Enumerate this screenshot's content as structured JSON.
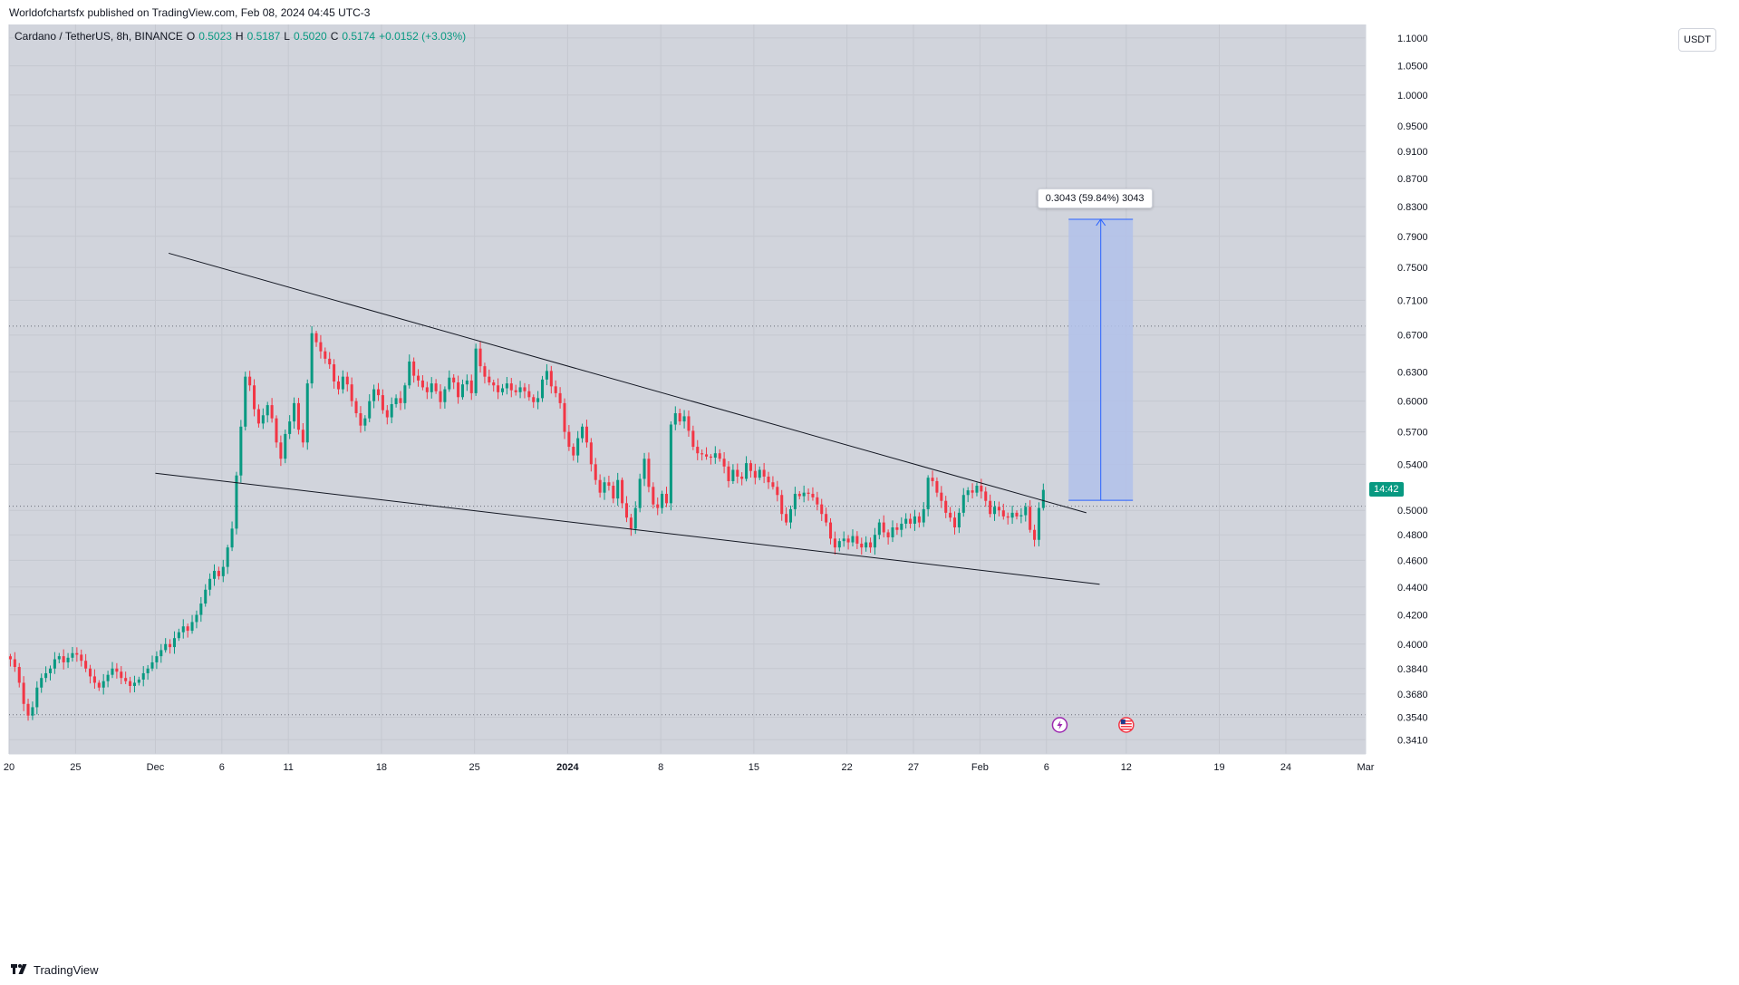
{
  "caption": "Worldofchartsfx published on TradingView.com, Feb 08, 2024 04:45 UTC-3",
  "brand": "TradingView",
  "legend": {
    "symbol": "Cardano / TetherUS, 8h, BINANCE",
    "o_label": "O",
    "o_value": "0.5023",
    "h_label": "H",
    "h_value": "0.5187",
    "l_label": "L",
    "l_value": "0.5020",
    "c_label": "C",
    "c_value": "0.5174",
    "change": "+0.0152 (+3.03%)"
  },
  "unit_button": "USDT",
  "last_price_tag": "14:42",
  "measure_label": "0.3043 (59.84%) 3043",
  "colors": {
    "background": "#d1d4dc",
    "up": "#089981",
    "down": "#f23645",
    "trendline": "#131722",
    "measure_fill": "#b2c1ea",
    "measure_line": "#2962ff"
  },
  "icons": [
    "lightning-event-icon",
    "us-flag-event-icon",
    "tradingview-logo-icon"
  ],
  "chart_data": {
    "type": "candlestick",
    "timeframe": "8h",
    "y_scale": "log",
    "ylim": [
      0.333,
      1.125
    ],
    "x_range": [
      "2023-11-20",
      "2024-03-01"
    ],
    "y_ticks": [
      "1.1000",
      "1.0500",
      "1.0000",
      "0.9500",
      "0.9100",
      "0.8700",
      "0.8300",
      "0.7900",
      "0.7500",
      "0.7100",
      "0.6700",
      "0.6300",
      "0.6000",
      "0.5700",
      "0.5400",
      "0.5000",
      "0.4800",
      "0.4600",
      "0.4400",
      "0.4200",
      "0.4000",
      "0.3840",
      "0.3680",
      "0.3540",
      "0.3410"
    ],
    "x_ticks": [
      {
        "date": "2023-11-20",
        "label": "20"
      },
      {
        "date": "2023-11-25",
        "label": "25"
      },
      {
        "date": "2023-12-01",
        "label": "Dec"
      },
      {
        "date": "2023-12-06",
        "label": "6"
      },
      {
        "date": "2023-12-11",
        "label": "11"
      },
      {
        "date": "2023-12-18",
        "label": "18"
      },
      {
        "date": "2023-12-25",
        "label": "25"
      },
      {
        "date": "2024-01-01",
        "label": "2024"
      },
      {
        "date": "2024-01-08",
        "label": "8"
      },
      {
        "date": "2024-01-15",
        "label": "15"
      },
      {
        "date": "2024-01-22",
        "label": "22"
      },
      {
        "date": "2024-01-27",
        "label": "27"
      },
      {
        "date": "2024-02-01",
        "label": "Feb"
      },
      {
        "date": "2024-02-06",
        "label": "6"
      },
      {
        "date": "2024-02-12",
        "label": "12"
      },
      {
        "date": "2024-02-19",
        "label": "19"
      },
      {
        "date": "2024-02-24",
        "label": "24"
      },
      {
        "date": "2024-03-01",
        "label": "Mar"
      }
    ],
    "reference_lines": [
      0.68,
      0.5035,
      0.3555
    ],
    "last_close": 0.5174,
    "closes": [
      0.39,
      0.385,
      0.375,
      0.362,
      0.355,
      0.36,
      0.372,
      0.378,
      0.381,
      0.384,
      0.39,
      0.392,
      0.388,
      0.391,
      0.394,
      0.393,
      0.389,
      0.384,
      0.379,
      0.375,
      0.372,
      0.376,
      0.38,
      0.384,
      0.382,
      0.378,
      0.376,
      0.373,
      0.375,
      0.377,
      0.381,
      0.384,
      0.388,
      0.392,
      0.396,
      0.4,
      0.398,
      0.404,
      0.408,
      0.412,
      0.409,
      0.415,
      0.42,
      0.428,
      0.438,
      0.446,
      0.452,
      0.448,
      0.455,
      0.47,
      0.485,
      0.53,
      0.575,
      0.625,
      0.616,
      0.592,
      0.578,
      0.586,
      0.596,
      0.583,
      0.56,
      0.545,
      0.568,
      0.58,
      0.598,
      0.572,
      0.56,
      0.618,
      0.672,
      0.662,
      0.652,
      0.644,
      0.638,
      0.62,
      0.612,
      0.625,
      0.617,
      0.6,
      0.588,
      0.576,
      0.583,
      0.6,
      0.612,
      0.606,
      0.591,
      0.584,
      0.597,
      0.603,
      0.598,
      0.616,
      0.641,
      0.626,
      0.621,
      0.614,
      0.609,
      0.618,
      0.61,
      0.599,
      0.612,
      0.624,
      0.619,
      0.604,
      0.617,
      0.621,
      0.608,
      0.655,
      0.636,
      0.625,
      0.619,
      0.616,
      0.609,
      0.613,
      0.618,
      0.611,
      0.609,
      0.614,
      0.61,
      0.604,
      0.599,
      0.603,
      0.622,
      0.631,
      0.615,
      0.608,
      0.598,
      0.57,
      0.556,
      0.548,
      0.564,
      0.575,
      0.56,
      0.54,
      0.526,
      0.515,
      0.524,
      0.521,
      0.51,
      0.526,
      0.506,
      0.494,
      0.485,
      0.502,
      0.527,
      0.545,
      0.52,
      0.505,
      0.502,
      0.514,
      0.506,
      0.577,
      0.588,
      0.58,
      0.585,
      0.571,
      0.556,
      0.55,
      0.549,
      0.547,
      0.546,
      0.55,
      0.545,
      0.538,
      0.525,
      0.535,
      0.529,
      0.527,
      0.541,
      0.534,
      0.528,
      0.535,
      0.529,
      0.524,
      0.52,
      0.513,
      0.497,
      0.49,
      0.501,
      0.514,
      0.512,
      0.515,
      0.514,
      0.511,
      0.505,
      0.497,
      0.49,
      0.477,
      0.47,
      0.475,
      0.477,
      0.474,
      0.479,
      0.473,
      0.47,
      0.474,
      0.47,
      0.48,
      0.49,
      0.482,
      0.478,
      0.486,
      0.484,
      0.489,
      0.493,
      0.489,
      0.495,
      0.49,
      0.501,
      0.528,
      0.525,
      0.515,
      0.508,
      0.498,
      0.494,
      0.486,
      0.498,
      0.513,
      0.517,
      0.515,
      0.521,
      0.516,
      0.508,
      0.497,
      0.503,
      0.5,
      0.495,
      0.494,
      0.498,
      0.495,
      0.496,
      0.503,
      0.484,
      0.476,
      0.502,
      0.5174
    ],
    "trendlines": [
      {
        "from": {
          "date": "2023-12-02",
          "price": 0.768
        },
        "to": {
          "date": "2024-02-09",
          "price": 0.498
        }
      },
      {
        "from": {
          "date": "2023-12-01",
          "price": 0.532
        },
        "to": {
          "date": "2024-02-10",
          "price": 0.442
        }
      }
    ],
    "measure": {
      "start": {
        "date": "2024-02-07T16:00",
        "price": 0.5085
      },
      "end": {
        "date": "2024-02-12T12:00",
        "price": 0.8128
      },
      "value": "0.3043",
      "percent": "59.84%",
      "ticks": "3043"
    },
    "events": [
      {
        "date": "2024-02-07",
        "icon": "lightning-event-icon"
      },
      {
        "date": "2024-02-12",
        "icon": "us-flag-event-icon"
      }
    ]
  }
}
